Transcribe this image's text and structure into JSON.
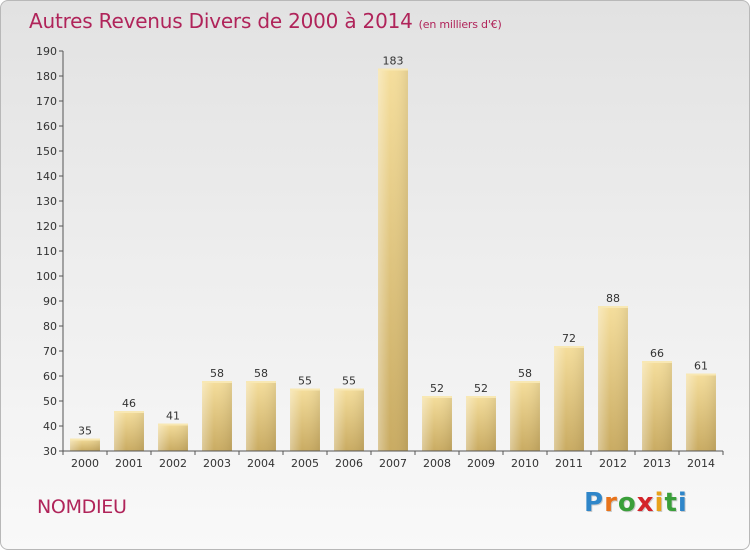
{
  "header": {
    "title": "Autres Revenus Divers de 2000 à 2014",
    "subtitle": "(en milliers d'€)"
  },
  "footer": {
    "place": "NOMDIEU",
    "logo_letters": [
      "P",
      "r",
      "o",
      "x",
      "i",
      "t",
      "i"
    ],
    "logo_colors": [
      "#2f86c9",
      "#e8731a",
      "#3a9f3a",
      "#d4242a",
      "#e8a21a",
      "#3a9f3a",
      "#2f86c9"
    ]
  },
  "chart_data": {
    "type": "bar",
    "title": "Autres Revenus Divers de 2000 à 2014",
    "subtitle": "(en milliers d'€)",
    "categories": [
      "2000",
      "2001",
      "2002",
      "2003",
      "2004",
      "2005",
      "2006",
      "2007",
      "2008",
      "2009",
      "2010",
      "2011",
      "2012",
      "2013",
      "2014"
    ],
    "values": [
      35,
      46,
      41,
      58,
      58,
      55,
      55,
      183,
      52,
      52,
      58,
      72,
      88,
      66,
      61
    ],
    "ylim": [
      30,
      190
    ],
    "yticks": [
      30,
      40,
      50,
      60,
      70,
      80,
      90,
      100,
      110,
      120,
      130,
      140,
      150,
      160,
      170,
      180,
      190
    ],
    "data_labels": true,
    "grid": false,
    "bar_color": "#ecd590"
  }
}
